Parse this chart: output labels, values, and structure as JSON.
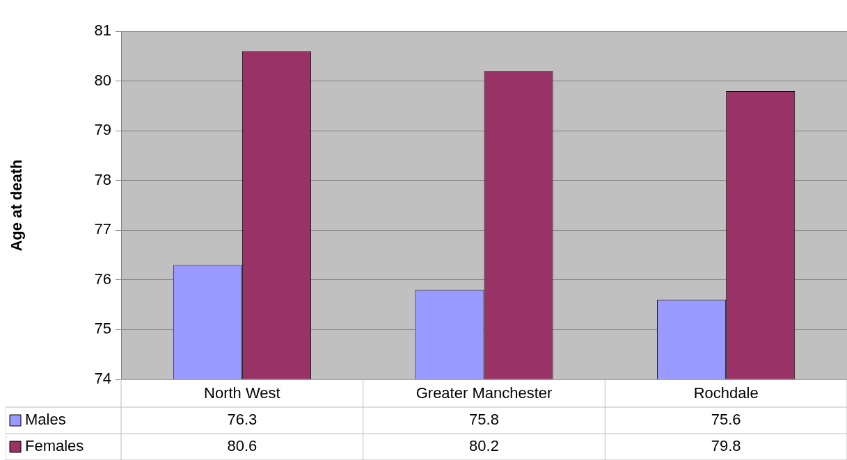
{
  "chart_data": {
    "type": "bar",
    "ylabel": "Age at death",
    "categories": [
      "North West",
      "Greater Manchester",
      "Rochdale"
    ],
    "series": [
      {
        "name": "Males",
        "color": "#9999ff",
        "values": [
          76.3,
          75.8,
          75.6
        ]
      },
      {
        "name": "Females",
        "color": "#993366",
        "values": [
          80.6,
          80.2,
          79.8
        ]
      }
    ],
    "ylim": [
      74,
      81
    ],
    "yticks": [
      74,
      75,
      76,
      77,
      78,
      79,
      80,
      81
    ],
    "grid": "y",
    "data_labels": true,
    "legend": "bottom"
  }
}
